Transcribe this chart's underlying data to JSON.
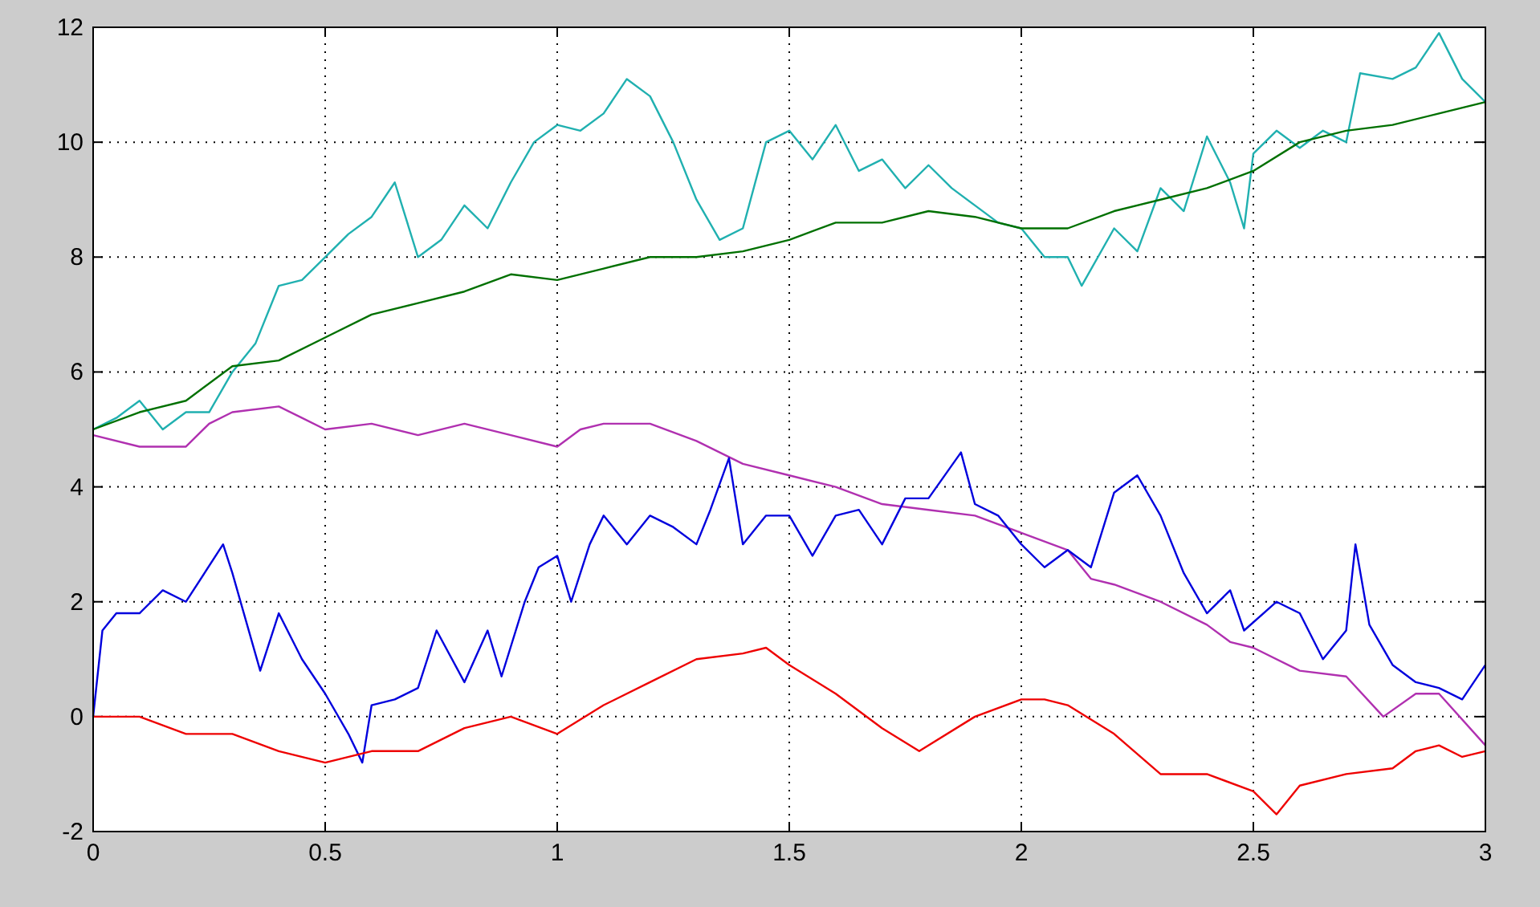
{
  "chart_data": {
    "type": "line",
    "xlim": [
      0,
      3
    ],
    "ylim": [
      -2,
      12
    ],
    "xticks": [
      0,
      0.5,
      1,
      1.5,
      2,
      2.5,
      3
    ],
    "yticks": [
      -2,
      0,
      2,
      4,
      6,
      8,
      10,
      12
    ],
    "grid": true,
    "line_style": "solid",
    "marker": "none",
    "series": [
      {
        "color": "#20b0b0",
        "x": [
          0,
          0.05,
          0.1,
          0.15,
          0.2,
          0.25,
          0.3,
          0.35,
          0.4,
          0.45,
          0.5,
          0.55,
          0.6,
          0.65,
          0.7,
          0.75,
          0.8,
          0.85,
          0.9,
          0.95,
          1.0,
          1.05,
          1.1,
          1.15,
          1.2,
          1.25,
          1.3,
          1.35,
          1.4,
          1.45,
          1.5,
          1.55,
          1.6,
          1.65,
          1.7,
          1.75,
          1.8,
          1.85,
          1.9,
          1.95,
          2.0,
          2.05,
          2.1,
          2.13,
          2.2,
          2.25,
          2.3,
          2.35,
          2.4,
          2.45,
          2.48,
          2.5,
          2.55,
          2.6,
          2.65,
          2.7,
          2.73,
          2.8,
          2.85,
          2.9,
          2.95,
          3.0
        ],
        "values": [
          5.0,
          5.2,
          5.5,
          5.0,
          5.3,
          5.3,
          6.0,
          6.5,
          7.5,
          7.6,
          8.0,
          8.4,
          8.7,
          9.3,
          8.0,
          8.3,
          8.9,
          8.5,
          9.3,
          10.0,
          10.3,
          10.2,
          10.5,
          11.1,
          10.8,
          10.0,
          9.0,
          8.3,
          8.5,
          10.0,
          10.2,
          9.7,
          10.3,
          9.5,
          9.7,
          9.2,
          9.6,
          9.2,
          8.9,
          8.6,
          8.5,
          8.0,
          8.0,
          7.5,
          8.5,
          8.1,
          9.2,
          8.8,
          10.1,
          9.3,
          8.5,
          9.8,
          10.2,
          9.9,
          10.2,
          10.0,
          11.2,
          11.1,
          11.3,
          11.9,
          11.1,
          10.7
        ]
      },
      {
        "color": "#007000",
        "x": [
          0,
          0.1,
          0.2,
          0.3,
          0.4,
          0.5,
          0.6,
          0.7,
          0.8,
          0.9,
          1.0,
          1.1,
          1.2,
          1.3,
          1.4,
          1.5,
          1.6,
          1.7,
          1.8,
          1.9,
          2.0,
          2.1,
          2.2,
          2.3,
          2.4,
          2.5,
          2.6,
          2.7,
          2.8,
          2.9,
          3.0
        ],
        "values": [
          5.0,
          5.3,
          5.5,
          6.1,
          6.2,
          6.6,
          7.0,
          7.2,
          7.4,
          7.7,
          7.6,
          7.8,
          8.0,
          8.0,
          8.1,
          8.3,
          8.6,
          8.6,
          8.8,
          8.7,
          8.5,
          8.5,
          8.8,
          9.0,
          9.2,
          9.5,
          10.0,
          10.2,
          10.3,
          10.5,
          10.7
        ]
      },
      {
        "color": "#b030b0",
        "x": [
          0,
          0.1,
          0.2,
          0.25,
          0.3,
          0.4,
          0.45,
          0.5,
          0.6,
          0.7,
          0.8,
          0.9,
          1.0,
          1.05,
          1.1,
          1.2,
          1.3,
          1.4,
          1.5,
          1.6,
          1.7,
          1.8,
          1.9,
          2.0,
          2.1,
          2.15,
          2.2,
          2.3,
          2.4,
          2.45,
          2.5,
          2.6,
          2.7,
          2.78,
          2.85,
          2.9,
          3.0
        ],
        "values": [
          4.9,
          4.7,
          4.7,
          5.1,
          5.3,
          5.4,
          5.2,
          5.0,
          5.1,
          4.9,
          5.1,
          4.9,
          4.7,
          5.0,
          5.1,
          5.1,
          4.8,
          4.4,
          4.2,
          4.0,
          3.7,
          3.6,
          3.5,
          3.2,
          2.9,
          2.4,
          2.3,
          2.0,
          1.6,
          1.3,
          1.2,
          0.8,
          0.7,
          0.0,
          0.4,
          0.4,
          -0.5
        ]
      },
      {
        "color": "#0000dd",
        "x": [
          0,
          0.02,
          0.05,
          0.1,
          0.15,
          0.2,
          0.28,
          0.3,
          0.36,
          0.4,
          0.45,
          0.5,
          0.55,
          0.58,
          0.6,
          0.65,
          0.7,
          0.74,
          0.8,
          0.85,
          0.88,
          0.93,
          0.96,
          1.0,
          1.03,
          1.07,
          1.1,
          1.15,
          1.2,
          1.25,
          1.3,
          1.33,
          1.37,
          1.4,
          1.45,
          1.5,
          1.55,
          1.6,
          1.65,
          1.7,
          1.75,
          1.8,
          1.87,
          1.9,
          1.95,
          2.0,
          2.05,
          2.1,
          2.15,
          2.2,
          2.25,
          2.3,
          2.35,
          2.4,
          2.45,
          2.48,
          2.55,
          2.6,
          2.65,
          2.7,
          2.72,
          2.75,
          2.8,
          2.85,
          2.9,
          2.95,
          3.0
        ],
        "values": [
          0,
          1.5,
          1.8,
          1.8,
          2.2,
          2.0,
          3.0,
          2.5,
          0.8,
          1.8,
          1.0,
          0.4,
          -0.3,
          -0.8,
          0.2,
          0.3,
          0.5,
          1.5,
          0.6,
          1.5,
          0.7,
          2.0,
          2.6,
          2.8,
          2.0,
          3.0,
          3.5,
          3.0,
          3.5,
          3.3,
          3.0,
          3.6,
          4.5,
          3.0,
          3.5,
          3.5,
          2.8,
          3.5,
          3.6,
          3.0,
          3.8,
          3.8,
          4.6,
          3.7,
          3.5,
          3.0,
          2.6,
          2.9,
          2.6,
          3.9,
          4.2,
          3.5,
          2.5,
          1.8,
          2.2,
          1.5,
          2.0,
          1.8,
          1.0,
          1.5,
          3.0,
          1.6,
          0.9,
          0.6,
          0.5,
          0.3,
          0.9
        ]
      },
      {
        "color": "#ee0000",
        "x": [
          0,
          0.1,
          0.2,
          0.3,
          0.4,
          0.5,
          0.6,
          0.7,
          0.8,
          0.9,
          1.0,
          1.1,
          1.2,
          1.3,
          1.4,
          1.45,
          1.5,
          1.6,
          1.7,
          1.78,
          1.9,
          2.0,
          2.05,
          2.1,
          2.2,
          2.3,
          2.4,
          2.5,
          2.55,
          2.6,
          2.7,
          2.8,
          2.85,
          2.9,
          2.95,
          3.0
        ],
        "values": [
          0,
          0,
          -0.3,
          -0.3,
          -0.6,
          -0.8,
          -0.6,
          -0.6,
          -0.2,
          0,
          -0.3,
          0.2,
          0.6,
          1.0,
          1.1,
          1.2,
          0.9,
          0.4,
          -0.2,
          -0.6,
          0,
          0.3,
          0.3,
          0.2,
          -0.3,
          -1.0,
          -1.0,
          -1.3,
          -1.7,
          -1.2,
          -1.0,
          -0.9,
          -0.6,
          -0.5,
          -0.7,
          -0.6
        ]
      }
    ]
  }
}
